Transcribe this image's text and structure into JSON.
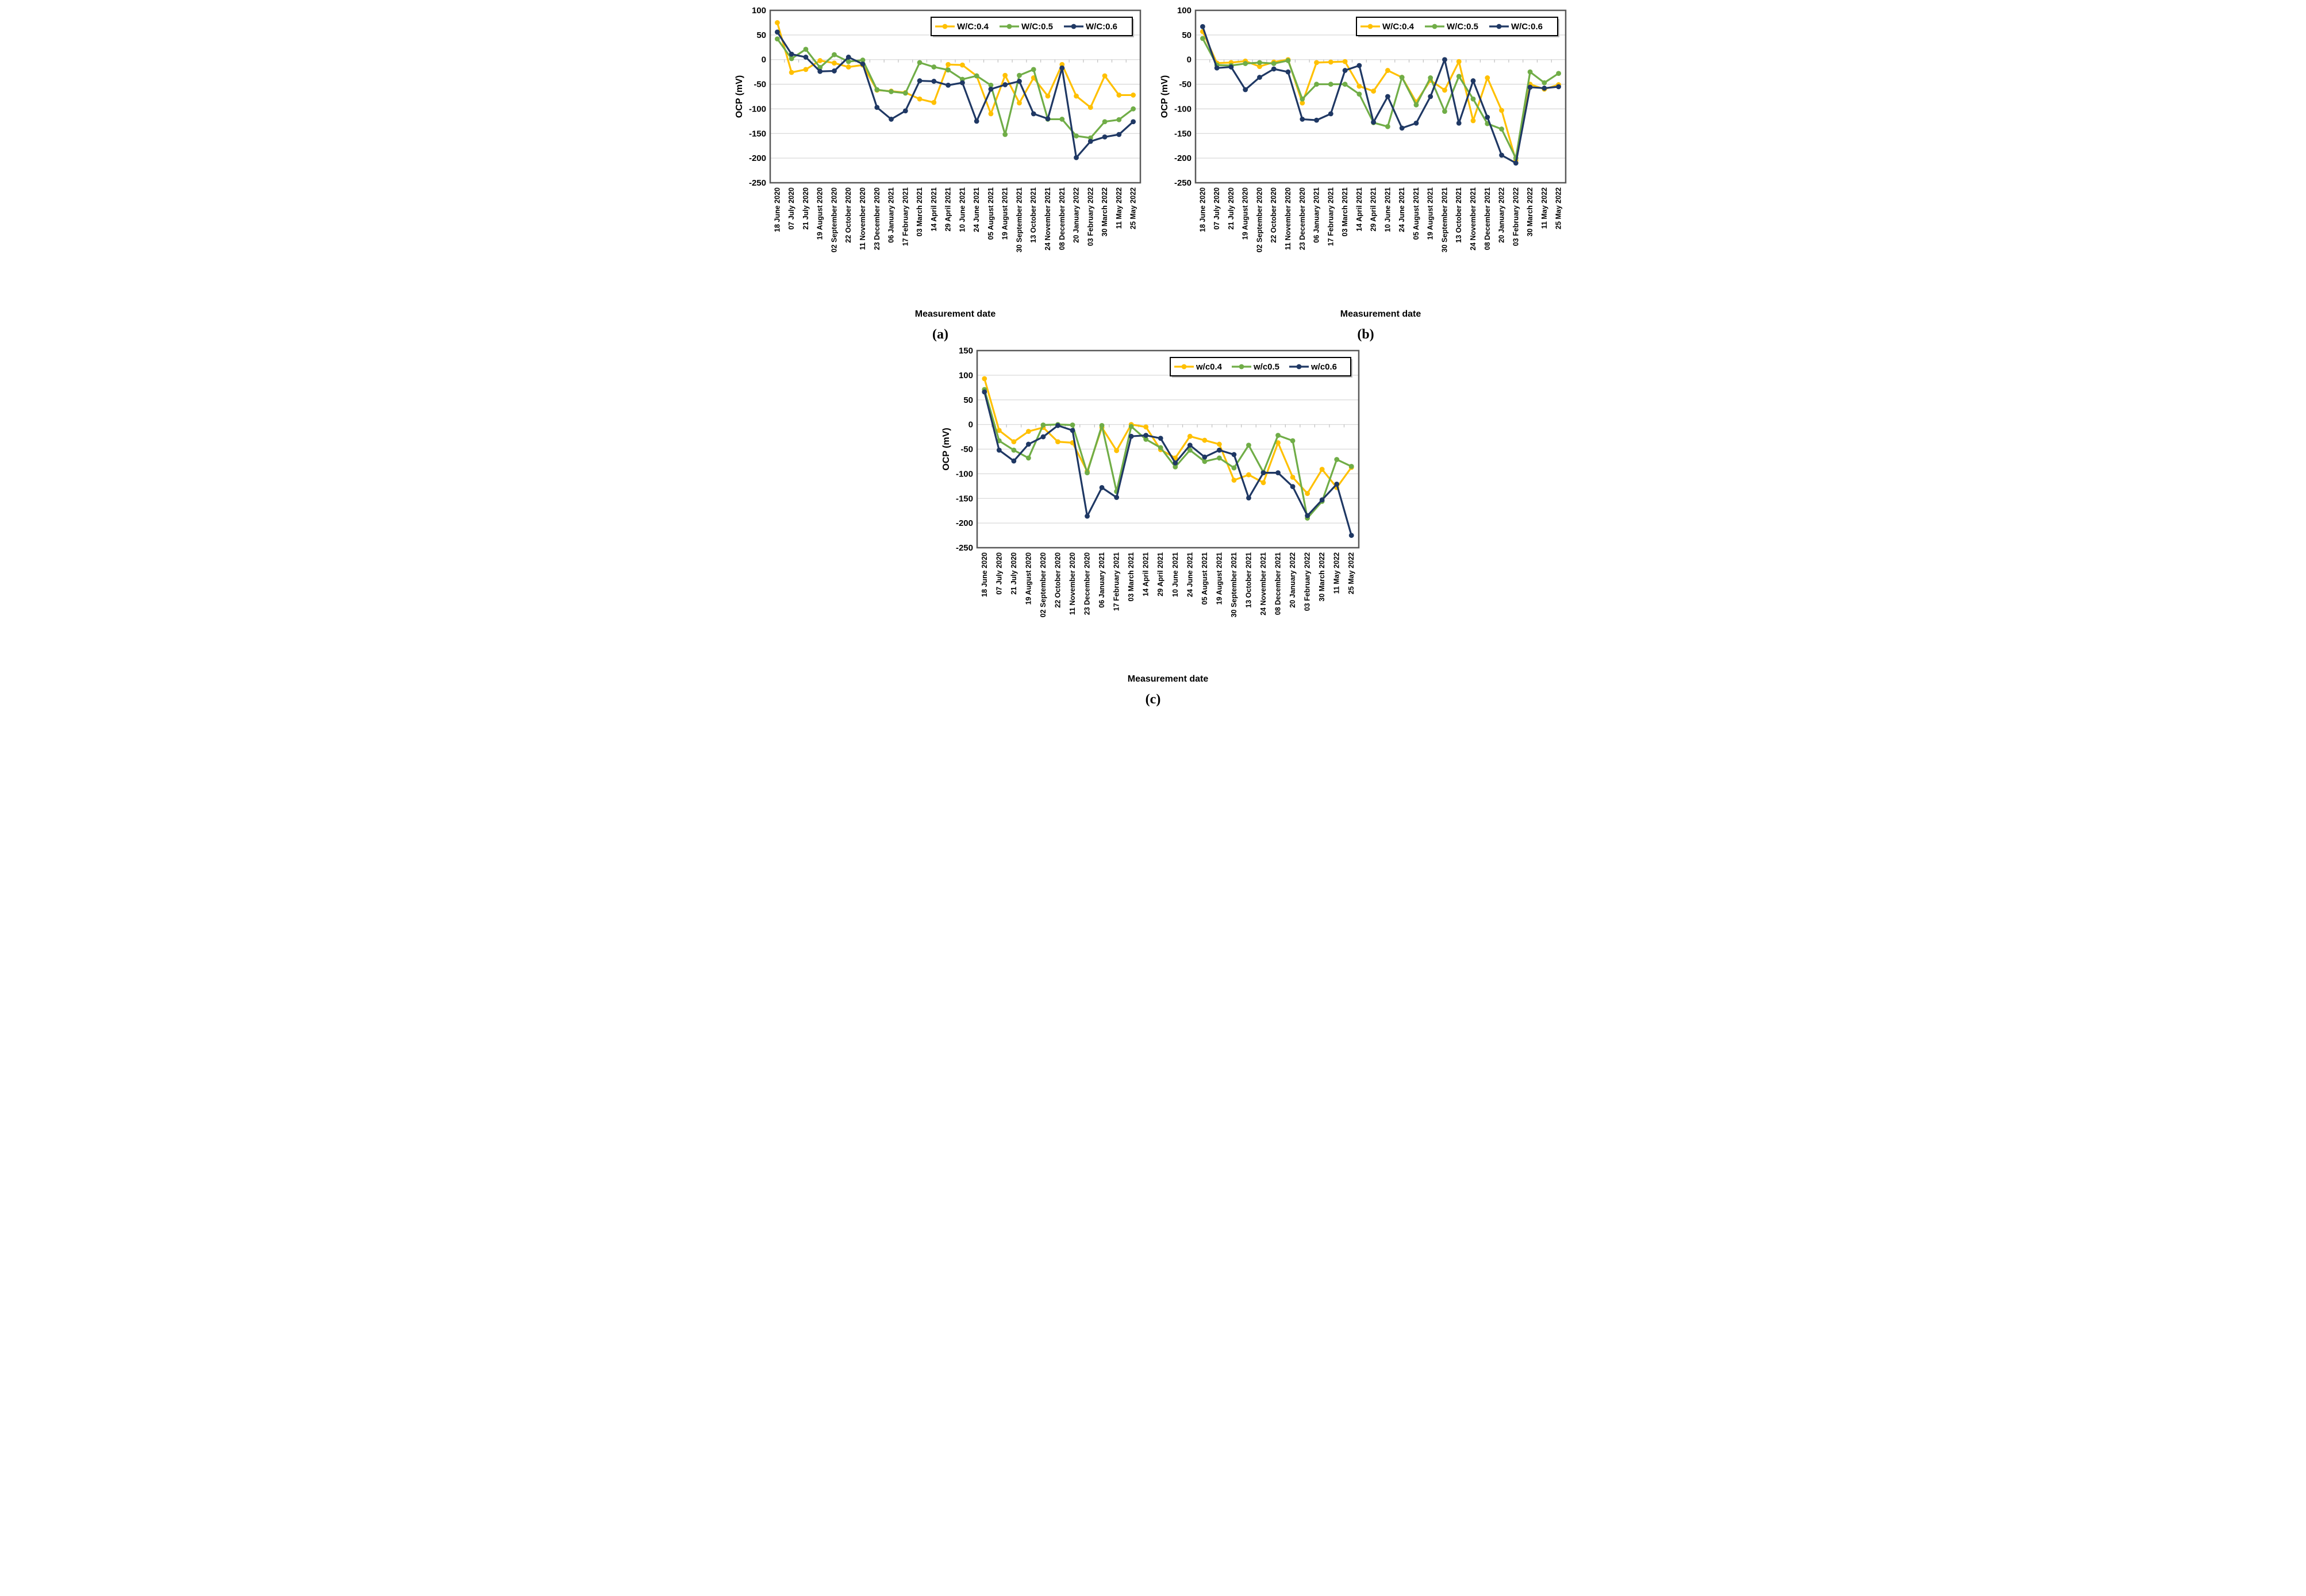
{
  "page": {
    "background": "#ffffff",
    "xlabel": "Measurement date",
    "ylabel": "OCP (mV)",
    "captions": {
      "a": "(a)",
      "b": "(b)",
      "c": "(c)"
    }
  },
  "colors": {
    "wc04": "#FFC000",
    "wc05": "#70AD47",
    "wc06": "#1F3864",
    "gridline": "#D9D9D9",
    "plot_border": "#595959",
    "text": "#000000",
    "legend_border": "#000000",
    "legend_bg": "#FFFFFF"
  },
  "chart_data": [
    {
      "id": "a",
      "type": "line",
      "title": "(a)",
      "xlabel": "Measurement date",
      "ylabel": "OCP (mV)",
      "ylim": [
        -250,
        100
      ],
      "yticks": [
        100,
        50,
        0,
        -50,
        -100,
        -150,
        -200,
        -250
      ],
      "grid": true,
      "legend_position": "top-right",
      "categories": [
        "18 June 2020",
        "07 July 2020",
        "21 July 2020",
        "19 August 2020",
        "02 September 2020",
        "22 October 2020",
        "11 November 2020",
        "23 December 2020",
        "06 January 2021",
        "17 February 2021",
        "03 March 2021",
        "14 April 2021",
        "29 April 2021",
        "10 June 2021",
        "24 June 2021",
        "05 August 2021",
        "19 August 2021",
        "30 September 2021",
        "13 October 2021",
        "24 November 2021",
        "08 December 2021",
        "20 January 2022",
        "03 February 2022",
        "30 March 2022",
        "11 May 2022",
        "25 May 2022"
      ],
      "series": [
        {
          "name": "W/C:0.4",
          "color": "#FFC000",
          "values": [
            75,
            -26,
            -20,
            -2,
            -7,
            -15,
            -11,
            -62,
            -64,
            -67,
            -80,
            -87,
            -10,
            -11,
            -33,
            -110,
            -32,
            -88,
            -37,
            -74,
            -10,
            -74,
            -97,
            -33,
            -72,
            -72
          ]
        },
        {
          "name": "W/C:0.5",
          "color": "#70AD47",
          "values": [
            42,
            2,
            21,
            -16,
            10,
            -4,
            -1,
            -61,
            -65,
            -68,
            -6,
            -15,
            -21,
            -40,
            -33,
            -52,
            -152,
            -32,
            -20,
            -121,
            -121,
            -155,
            -159,
            -126,
            -122,
            -100
          ]
        },
        {
          "name": "W/C:0.6",
          "color": "#1F3864",
          "values": [
            56,
            11,
            5,
            -24,
            -23,
            5,
            -9,
            -97,
            -121,
            -104,
            -43,
            -44,
            -52,
            -47,
            -125,
            -60,
            -51,
            -44,
            -110,
            -120,
            -17,
            -199,
            -166,
            -157,
            -152,
            -126
          ]
        }
      ]
    },
    {
      "id": "b",
      "type": "line",
      "title": "(b)",
      "xlabel": "Measurement date",
      "ylabel": "OCP (mV)",
      "ylim": [
        -250,
        100
      ],
      "yticks": [
        100,
        50,
        0,
        -50,
        -100,
        -150,
        -200,
        -250
      ],
      "grid": true,
      "legend_position": "top-right",
      "categories": [
        "18 June 2020",
        "07 July 2020",
        "21 July 2020",
        "19 August 2020",
        "02 September 2020",
        "22 October 2020",
        "11 November 2020",
        "23 December 2020",
        "06 January 2021",
        "17 February 2021",
        "03 March 2021",
        "14 April 2021",
        "29 April 2021",
        "10 June 2021",
        "24 June 2021",
        "05 August 2021",
        "19 August 2021",
        "30 September 2021",
        "13 October 2021",
        "24 November 2021",
        "08 December 2021",
        "20 January 2022",
        "03 February 2022",
        "30 March 2022",
        "11 May 2022",
        "25 May 2022"
      ],
      "series": [
        {
          "name": "W/C:0.4",
          "color": "#FFC000",
          "values": [
            57,
            -7,
            -6,
            -3,
            -14,
            -5,
            0,
            -88,
            -6,
            -5,
            -4,
            -54,
            -64,
            -22,
            -36,
            -86,
            -42,
            -62,
            -4,
            -124,
            -37,
            -103,
            -205,
            -50,
            -60,
            -51
          ]
        },
        {
          "name": "W/C:0.5",
          "color": "#70AD47",
          "values": [
            43,
            -11,
            -12,
            -8,
            -6,
            -8,
            -2,
            -80,
            -50,
            -50,
            -50,
            -70,
            -128,
            -136,
            -36,
            -92,
            -37,
            -105,
            -34,
            -80,
            -130,
            -141,
            -200,
            -25,
            -47,
            -28
          ]
        },
        {
          "name": "W/C:0.6",
          "color": "#1F3864",
          "values": [
            67,
            -17,
            -15,
            -61,
            -36,
            -19,
            -25,
            -121,
            -123,
            -110,
            -22,
            -12,
            -127,
            -75,
            -139,
            -129,
            -75,
            0,
            -129,
            -43,
            -117,
            -194,
            -210,
            -56,
            -58,
            -55
          ]
        }
      ]
    },
    {
      "id": "c",
      "type": "line",
      "title": "(c)",
      "xlabel": "Measurement date",
      "ylabel": "OCP (mV)",
      "ylim": [
        -250,
        150
      ],
      "yticks": [
        150,
        100,
        50,
        0,
        -50,
        -100,
        -150,
        -200,
        -250
      ],
      "grid": true,
      "legend_position": "top-right",
      "categories": [
        "18 June 2020",
        "07 July 2020",
        "21 July 2020",
        "19 August 2020",
        "02 September 2020",
        "22 October 2020",
        "11 November 2020",
        "23 December 2020",
        "06 January 2021",
        "17 February 2021",
        "03 March 2021",
        "14 April 2021",
        "29 April 2021",
        "10 June 2021",
        "24 June 2021",
        "05 August 2021",
        "19 August 2021",
        "30 September 2021",
        "13 October 2021",
        "24 November 2021",
        "08 December 2021",
        "20 January 2022",
        "03 February 2022",
        "30 March 2022",
        "11 May 2022",
        "25 May 2022"
      ],
      "series": [
        {
          "name": "w/c0.4",
          "color": "#FFC000",
          "values": [
            93,
            -12,
            -35,
            -14,
            -6,
            -35,
            -37,
            -95,
            -6,
            -53,
            0,
            -5,
            -51,
            -68,
            -24,
            -32,
            -40,
            -113,
            -102,
            -118,
            -37,
            -107,
            -140,
            -91,
            -128,
            -87
          ]
        },
        {
          "name": "w/c0.5",
          "color": "#70AD47",
          "values": [
            71,
            -33,
            -52,
            -68,
            -1,
            0,
            -1,
            -98,
            -2,
            -136,
            -4,
            -30,
            -47,
            -86,
            -52,
            -75,
            -68,
            -88,
            -42,
            -97,
            -22,
            -33,
            -190,
            -156,
            -71,
            -85
          ]
        },
        {
          "name": "w/c0.6",
          "color": "#1F3864",
          "values": [
            66,
            -52,
            -74,
            -40,
            -25,
            -2,
            -12,
            -186,
            -128,
            -148,
            -24,
            -22,
            -28,
            -78,
            -42,
            -66,
            -52,
            -61,
            -149,
            -98,
            -98,
            -126,
            -185,
            -153,
            -121,
            -225
          ]
        }
      ]
    }
  ]
}
